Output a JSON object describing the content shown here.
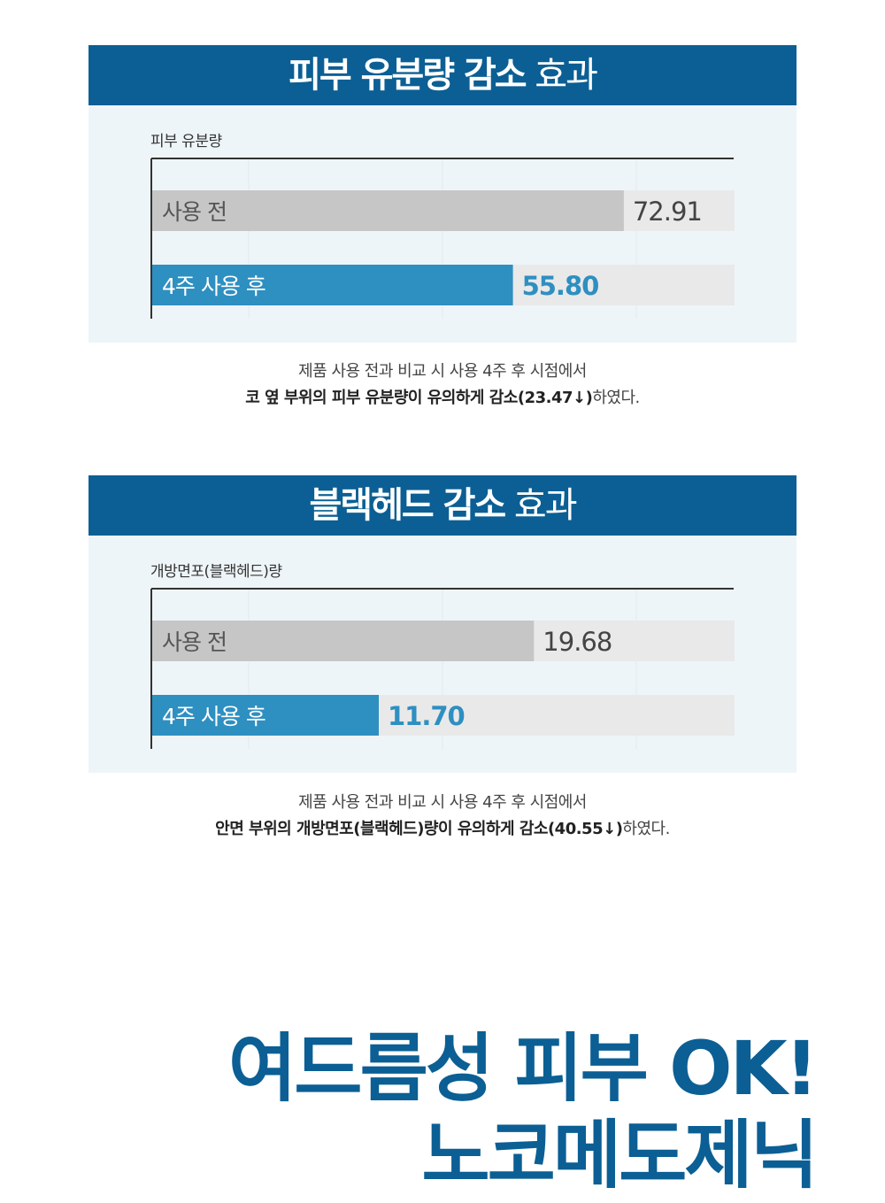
{
  "colors": {
    "header_bg": "#0b5f94",
    "panel_bg": "#eef5f8",
    "bar_track": "#e9e9e9",
    "bar_before": "#c6c6c6",
    "bar_after": "#2e8fc1",
    "value_before": "#444444",
    "value_after": "#2e8fc1"
  },
  "section1": {
    "header_bold": "피부 유분량 감소",
    "header_light": "효과",
    "caption_line1": "제품 사용 전과 비교 시 사용 4주 후 시점에서",
    "caption_line2_bold": "코 옆 부위의 피부 유분량이 유의하게 감소(23.47↓)",
    "caption_line2_rest": "하였다."
  },
  "section2": {
    "header_bold": "블랙헤드 감소",
    "header_light": "효과",
    "caption_line1": "제품 사용 전과 비교 시 사용 4주 후 시점에서",
    "caption_line2_bold": "안면 부위의 개방면포(블랙헤드)량이 유의하게 감소(40.55↓)",
    "caption_line2_rest": "하였다."
  },
  "chart_data": [
    {
      "type": "bar",
      "orientation": "horizontal",
      "title": "",
      "xlabel": "",
      "ylabel": "피부 유분량",
      "categories": [
        "사용 전",
        "4주 사용 후"
      ],
      "values": [
        72.91,
        55.8
      ],
      "value_labels": [
        "72.91",
        "55.80"
      ],
      "xlim": [
        0,
        90
      ],
      "grid": true,
      "legend": "none"
    },
    {
      "type": "bar",
      "orientation": "horizontal",
      "title": "",
      "xlabel": "",
      "ylabel": "개방면포(블랙헤드)량",
      "categories": [
        "사용 전",
        "4주 사용 후"
      ],
      "values": [
        19.68,
        11.7
      ],
      "value_labels": [
        "19.68",
        "11.70"
      ],
      "xlim": [
        0,
        30
      ],
      "grid": true,
      "legend": "none"
    }
  ],
  "banner": {
    "line1": "여드름성 피부 OK!",
    "line2": "노코메도제닉"
  }
}
